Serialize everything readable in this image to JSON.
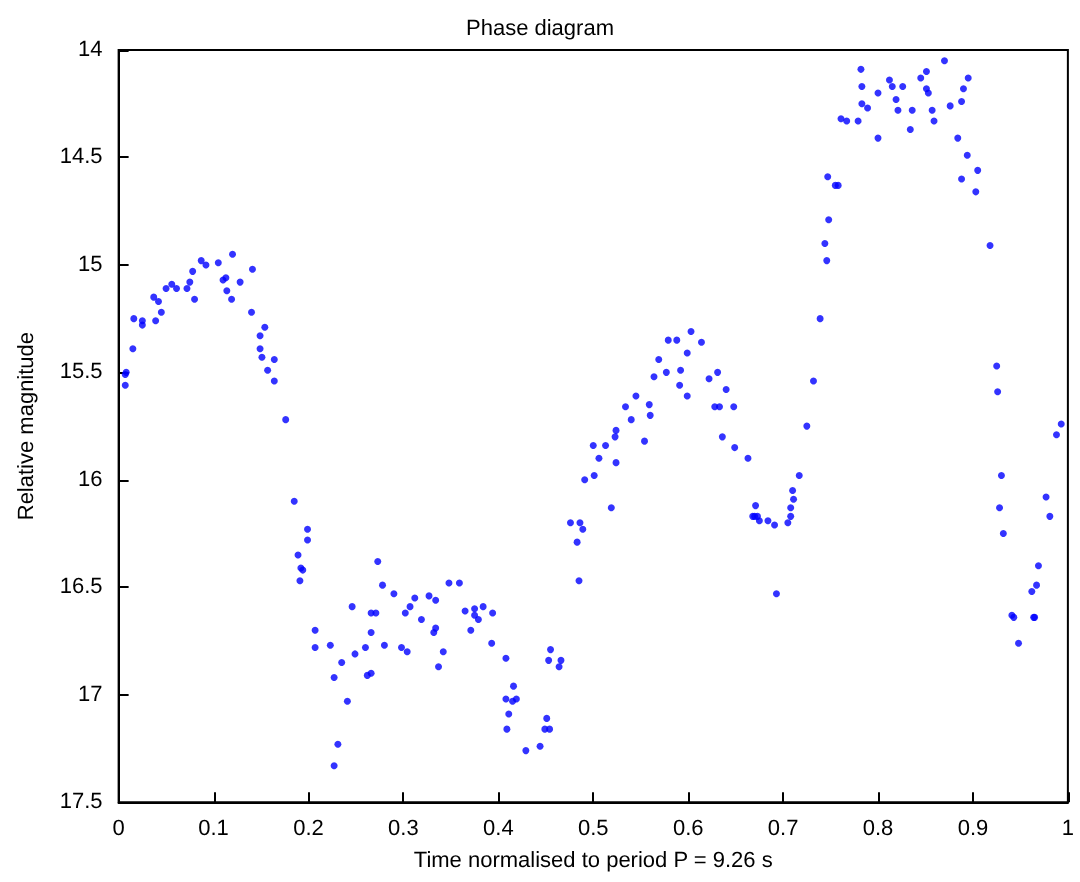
{
  "chart_data": {
    "type": "scatter",
    "title": "Phase diagram",
    "xlabel": "Time normalised to period P = 9.26 s",
    "ylabel": "Relative magnitude",
    "xlim": [
      0,
      1
    ],
    "xticks": [
      0,
      0.1,
      0.2,
      0.3,
      0.4,
      0.5,
      0.6,
      0.7,
      0.8,
      0.9,
      1
    ],
    "ylim": [
      17.5,
      14
    ],
    "yticks": [
      14,
      14.5,
      15,
      15.5,
      16,
      16.5,
      17,
      17.5
    ],
    "marker": "circle",
    "series": [
      {
        "color": "#0000ff",
        "x": [
          0.007,
          0.008,
          0.007,
          0.015,
          0.016,
          0.025,
          0.025,
          0.037,
          0.039,
          0.042,
          0.045,
          0.05,
          0.056,
          0.061,
          0.072,
          0.075,
          0.078,
          0.08,
          0.087,
          0.092,
          0.105,
          0.11,
          0.113,
          0.114,
          0.119,
          0.12,
          0.128,
          0.14,
          0.141,
          0.149,
          0.149,
          0.151,
          0.154,
          0.157,
          0.164,
          0.164,
          0.176,
          0.185,
          0.199,
          0.199,
          0.189,
          0.192,
          0.194,
          0.191,
          0.207,
          0.207,
          0.223,
          0.227,
          0.231,
          0.227,
          0.235,
          0.241,
          0.246,
          0.249,
          0.26,
          0.262,
          0.266,
          0.266,
          0.266,
          0.271,
          0.273,
          0.278,
          0.28,
          0.29,
          0.298,
          0.302,
          0.304,
          0.307,
          0.312,
          0.319,
          0.327,
          0.332,
          0.334,
          0.334,
          0.337,
          0.342,
          0.348,
          0.359,
          0.365,
          0.371,
          0.375,
          0.375,
          0.379,
          0.384,
          0.394,
          0.393,
          0.408,
          0.408,
          0.409,
          0.411,
          0.416,
          0.415,
          0.419,
          0.429,
          0.444,
          0.449,
          0.451,
          0.454,
          0.453,
          0.455,
          0.466,
          0.464,
          0.476,
          0.483,
          0.485,
          0.486,
          0.489,
          0.491,
          0.5,
          0.501,
          0.506,
          0.513,
          0.519,
          0.523,
          0.524,
          0.524,
          0.534,
          0.54,
          0.545,
          0.554,
          0.559,
          0.56,
          0.564,
          0.569,
          0.577,
          0.579,
          0.588,
          0.592,
          0.591,
          0.599,
          0.599,
          0.603,
          0.614,
          0.622,
          0.631,
          0.628,
          0.633,
          0.64,
          0.648,
          0.636,
          0.649,
          0.663,
          0.671,
          0.668,
          0.67,
          0.673,
          0.675,
          0.684,
          0.691,
          0.693,
          0.705,
          0.708,
          0.708,
          0.71,
          0.711,
          0.717,
          0.725,
          0.732,
          0.739,
          0.746,
          0.744,
          0.748,
          0.747,
          0.755,
          0.758,
          0.761,
          0.767,
          0.779,
          0.782,
          0.783,
          0.783,
          0.789,
          0.8,
          0.8,
          0.812,
          0.815,
          0.819,
          0.821,
          0.826,
          0.834,
          0.836,
          0.845,
          0.851,
          0.851,
          0.853,
          0.857,
          0.859,
          0.87,
          0.876,
          0.884,
          0.888,
          0.888,
          0.89,
          0.895,
          0.894,
          0.903,
          0.905,
          0.918,
          0.925,
          0.926,
          0.93,
          0.928,
          0.932,
          0.941,
          0.943,
          0.948,
          0.962,
          0.967,
          0.964,
          0.965,
          0.969,
          0.977,
          0.981,
          0.988,
          0.993
        ],
        "values": [
          15.51,
          15.5,
          15.56,
          15.39,
          15.25,
          15.26,
          15.28,
          15.15,
          15.26,
          15.17,
          15.22,
          15.11,
          15.09,
          15.11,
          15.11,
          15.08,
          15.03,
          15.16,
          14.98,
          15,
          14.99,
          15.07,
          15.06,
          15.12,
          15.16,
          14.95,
          15.08,
          15.22,
          15.02,
          15.33,
          15.39,
          15.43,
          15.29,
          15.49,
          15.44,
          15.54,
          15.72,
          16.1,
          16.23,
          16.28,
          16.35,
          16.41,
          16.42,
          16.47,
          16.7,
          16.78,
          16.77,
          16.92,
          17.23,
          17.33,
          16.85,
          17.03,
          16.59,
          16.81,
          16.78,
          16.91,
          16.62,
          16.71,
          16.9,
          16.62,
          16.38,
          16.49,
          16.77,
          16.53,
          16.78,
          16.62,
          16.8,
          16.59,
          16.55,
          16.65,
          16.54,
          16.71,
          16.56,
          16.69,
          16.87,
          16.8,
          16.48,
          16.48,
          16.61,
          16.7,
          16.6,
          16.63,
          16.65,
          16.59,
          16.62,
          16.76,
          16.83,
          17.02,
          17.16,
          17.09,
          16.96,
          17.03,
          17.02,
          17.26,
          17.24,
          17.16,
          17.11,
          17.16,
          16.84,
          16.79,
          16.84,
          16.87,
          16.2,
          16.29,
          16.47,
          16.2,
          16.23,
          16,
          15.84,
          15.98,
          15.9,
          15.84,
          16.13,
          15.8,
          15.77,
          15.92,
          15.66,
          15.72,
          15.61,
          15.82,
          15.65,
          15.7,
          15.52,
          15.44,
          15.5,
          15.35,
          15.35,
          15.49,
          15.56,
          15.41,
          15.61,
          15.31,
          15.36,
          15.53,
          15.5,
          15.66,
          15.66,
          15.58,
          15.66,
          15.8,
          15.85,
          15.9,
          16.12,
          16.17,
          16.17,
          16.17,
          16.19,
          16.19,
          16.21,
          16.53,
          16.2,
          16.17,
          16.13,
          16.05,
          16.09,
          15.98,
          15.75,
          15.54,
          15.25,
          14.98,
          14.9,
          14.79,
          14.59,
          14.63,
          14.63,
          14.32,
          14.33,
          14.33,
          14.09,
          14.17,
          14.25,
          14.27,
          14.41,
          14.2,
          14.14,
          14.17,
          14.23,
          14.28,
          14.17,
          14.37,
          14.28,
          14.13,
          14.1,
          14.18,
          14.2,
          14.28,
          14.33,
          14.05,
          14.26,
          14.41,
          14.24,
          14.6,
          14.18,
          14.13,
          14.49,
          14.66,
          14.56,
          14.91,
          15.47,
          15.59,
          15.98,
          16.13,
          16.25,
          16.63,
          16.64,
          16.76,
          16.52,
          16.49,
          16.64,
          16.64,
          16.4,
          16.08,
          16.17,
          15.79,
          15.74
        ]
      }
    ]
  }
}
